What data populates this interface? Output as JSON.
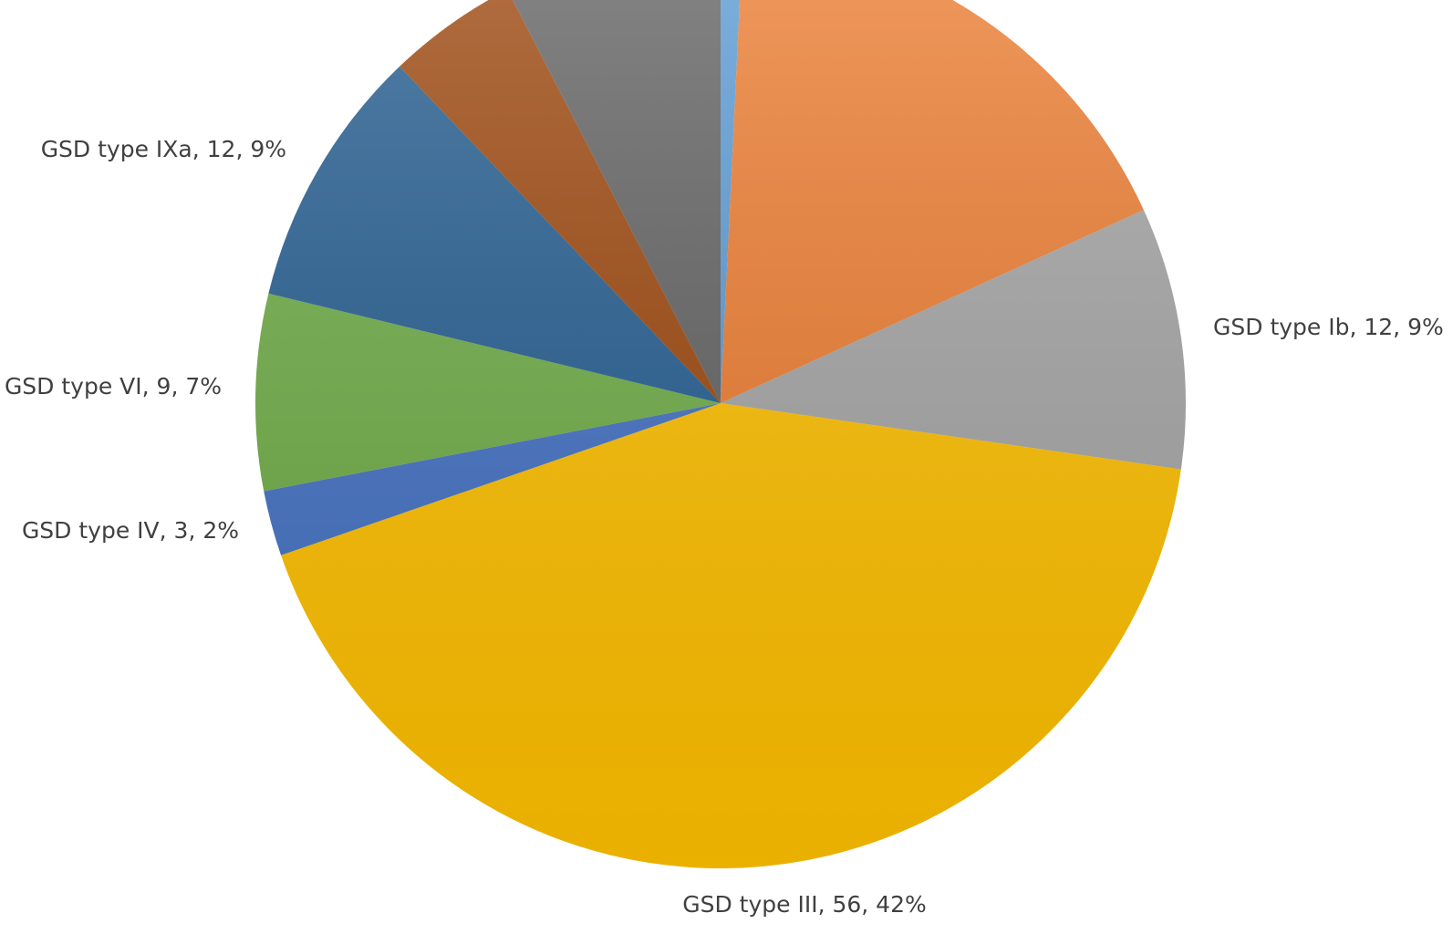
{
  "chart_data": {
    "type": "pie",
    "slices": [
      {
        "value": 1,
        "label": "",
        "color": "#5B9BD5"
      },
      {
        "value": 23,
        "label": "",
        "color": "#ED7D31"
      },
      {
        "value": 12,
        "label": "GSD type Ib, 12, 9%",
        "color": "#A5A5A5"
      },
      {
        "value": 56,
        "label": "GSD type III, 56, 42%",
        "color": "#FFC000"
      },
      {
        "value": 3,
        "label": "GSD type IV, 3, 2%",
        "color": "#4472C4"
      },
      {
        "value": 9,
        "label": "GSD type VI, 9, 7%",
        "color": "#70AD47"
      },
      {
        "value": 12,
        "label": "GSD type IXa, 12, 9%",
        "color": "#255E91"
      },
      {
        "value": 6,
        "label": "",
        "color": "#9E480E"
      },
      {
        "value": 10,
        "label": "",
        "color": "#636363"
      }
    ]
  }
}
